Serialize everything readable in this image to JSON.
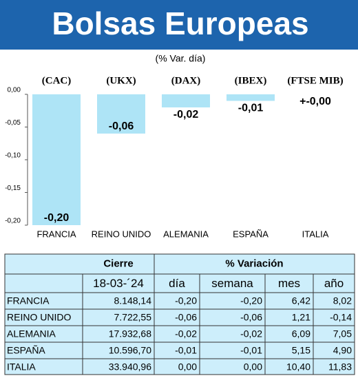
{
  "chart_data": {
    "type": "bar",
    "title": "Bolsas Europeas",
    "subtitle": "(% Var. día)",
    "index_labels": [
      "(CAC)",
      "(UKX)",
      "(DAX)",
      "(IBEX)",
      "(FTSE MIB)"
    ],
    "categories": [
      "FRANCIA",
      "REINO UNIDO",
      "ALEMANIA",
      "ESPAÑA",
      "ITALIA"
    ],
    "values": [
      -0.2,
      -0.06,
      -0.02,
      -0.01,
      0.0
    ],
    "value_labels": [
      "-0,20",
      "-0,06",
      "-0,02",
      "-0,01",
      "+-0,00"
    ],
    "color": "#aee4f6",
    "ylim": [
      -0.2,
      0.0
    ],
    "yticks": [
      {
        "value": 0.0,
        "label": "0,00"
      },
      {
        "value": -0.05,
        "label": "-0,05"
      },
      {
        "value": -0.1,
        "label": "-0,10"
      },
      {
        "value": -0.15,
        "label": "-0,15"
      },
      {
        "value": -0.2,
        "label": "-0,20"
      }
    ]
  },
  "table": {
    "groups": [
      "Cierre",
      "% Variación"
    ],
    "columns": [
      "18-03-´24",
      "día",
      "semana",
      "mes",
      "año"
    ],
    "rows": [
      [
        "FRANCIA",
        "8.148,14",
        "-0,20",
        "-0,20",
        "6,42",
        "8,02"
      ],
      [
        "REINO UNIDO",
        "7.722,55",
        "-0,06",
        "-0,06",
        "1,21",
        "-0,14"
      ],
      [
        "ALEMANIA",
        "17.932,68",
        "-0,02",
        "-0,02",
        "6,09",
        "7,05"
      ],
      [
        "ESPAÑA",
        "10.596,70",
        "-0,01",
        "-0,01",
        "5,15",
        "4,90"
      ],
      [
        "ITALIA",
        "33.940,96",
        "0,00",
        "0,00",
        "10,40",
        "11,83"
      ]
    ]
  }
}
